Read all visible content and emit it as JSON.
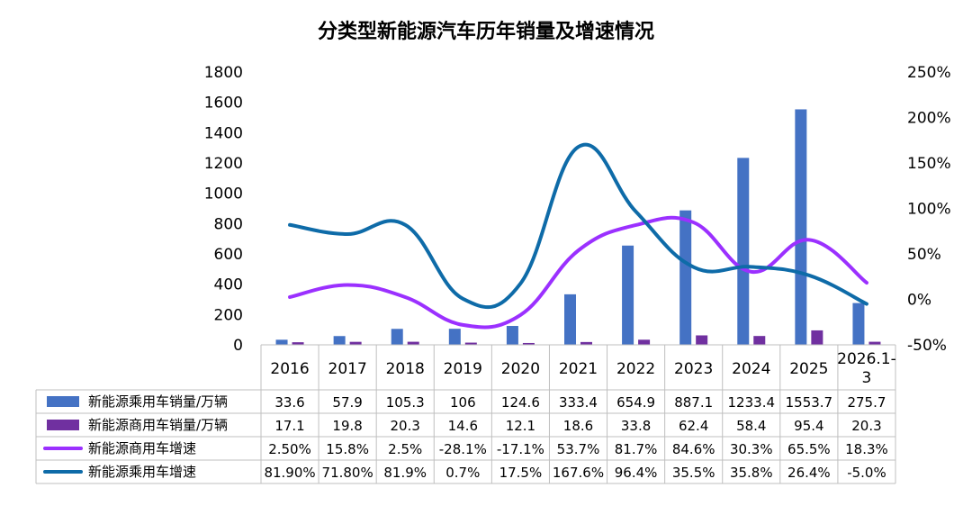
{
  "chart_data": {
    "type": "bar",
    "title": "分类型新能源汽车历年销量及增速情况",
    "categories": [
      "2016",
      "2017",
      "2018",
      "2019",
      "2020",
      "2021",
      "2022",
      "2023",
      "2024",
      "2025",
      "2026.1-3"
    ],
    "y_left": {
      "ylim": [
        0,
        1800
      ],
      "ticks": [
        "0",
        "200",
        "400",
        "600",
        "800",
        "1000",
        "1200",
        "1400",
        "1600",
        "1800"
      ]
    },
    "y_right": {
      "ylim": [
        -50,
        250
      ],
      "ticks": [
        "-50%",
        "0%",
        "50%",
        "100%",
        "150%",
        "200%",
        "250%"
      ]
    },
    "series": [
      {
        "name": "新能源乘用车销量/万辆",
        "type": "bar",
        "axis": "left",
        "color": "#4472C4",
        "values": [
          33.6,
          57.9,
          105.3,
          106,
          124.6,
          333.4,
          654.9,
          887.1,
          1233.4,
          1553.7,
          275.7
        ],
        "labels": [
          "33.6",
          "57.9",
          "105.3",
          "106",
          "124.6",
          "333.4",
          "654.9",
          "887.1",
          "1233.4",
          "1553.7",
          "275.7"
        ]
      },
      {
        "name": "新能源商用车销量/万辆",
        "type": "bar",
        "axis": "left",
        "color": "#7030A0",
        "values": [
          17.1,
          19.8,
          20.3,
          14.6,
          12.1,
          18.6,
          33.8,
          62.4,
          58.4,
          95.4,
          20.3
        ],
        "labels": [
          "17.1",
          "19.8",
          "20.3",
          "14.6",
          "12.1",
          "18.6",
          "33.8",
          "62.4",
          "58.4",
          "95.4",
          "20.3"
        ]
      },
      {
        "name": "新能源商用车增速",
        "type": "line",
        "axis": "right",
        "color": "#9B30FF",
        "values": [
          2.5,
          15.8,
          2.5,
          -28.1,
          -17.1,
          53.7,
          81.7,
          84.6,
          30.3,
          65.5,
          18.3
        ],
        "labels": [
          "2.50%",
          "15.8%",
          "2.5%",
          "-28.1%",
          "-17.1%",
          "53.7%",
          "81.7%",
          "84.6%",
          "30.3%",
          "65.5%",
          "18.3%"
        ]
      },
      {
        "name": "新能源乘用车增速",
        "type": "line",
        "axis": "right",
        "color": "#0E6BA8",
        "values": [
          81.9,
          71.8,
          81.9,
          0.7,
          17.5,
          167.6,
          96.4,
          35.5,
          35.8,
          26.4,
          -5.0
        ],
        "labels": [
          "81.90%",
          "71.80%",
          "81.9%",
          "0.7%",
          "17.5%",
          "167.6%",
          "96.4%",
          "35.5%",
          "35.8%",
          "26.4%",
          "-5.0%"
        ]
      }
    ],
    "legend": "data-table"
  }
}
